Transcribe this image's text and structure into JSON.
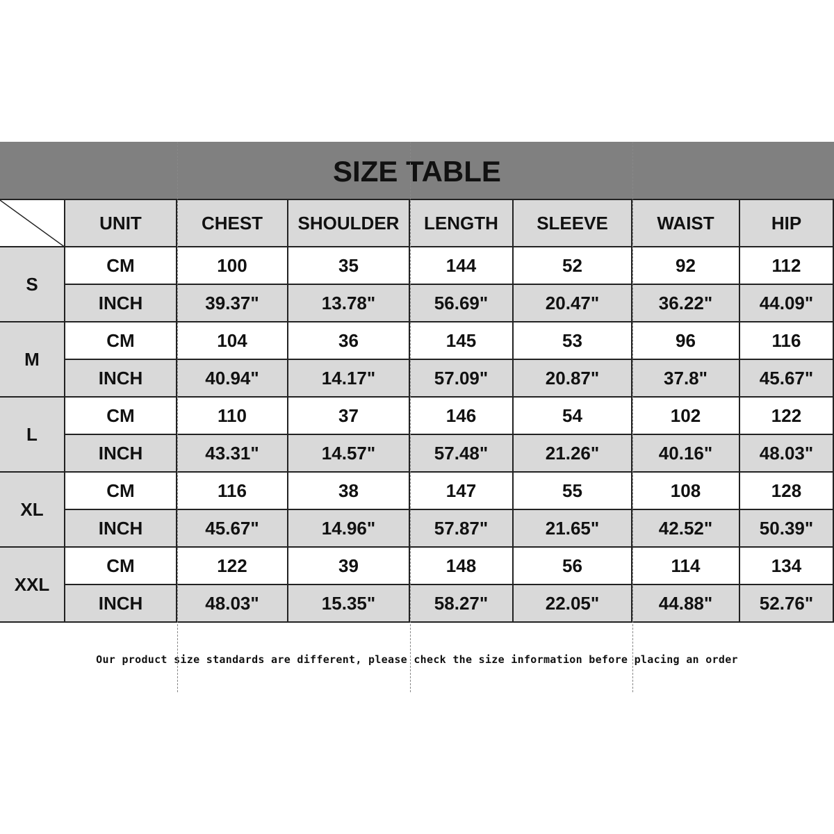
{
  "title": "SIZE TABLE",
  "colors": {
    "header_band": "#808080",
    "cell_gray": "#d9d9d9",
    "cell_white": "#ffffff"
  },
  "columns": [
    "UNIT",
    "CHEST",
    "SHOULDER",
    "LENGTH",
    "SLEEVE",
    "WAIST",
    "HIP"
  ],
  "sizes": [
    {
      "size": "S",
      "rows": [
        {
          "unit": "CM",
          "values": [
            "100",
            "35",
            "144",
            "52",
            "92",
            "112"
          ]
        },
        {
          "unit": "INCH",
          "values": [
            "39.37\"",
            "13.78\"",
            "56.69\"",
            "20.47\"",
            "36.22\"",
            "44.09\""
          ]
        }
      ]
    },
    {
      "size": "M",
      "rows": [
        {
          "unit": "CM",
          "values": [
            "104",
            "36",
            "145",
            "53",
            "96",
            "116"
          ]
        },
        {
          "unit": "INCH",
          "values": [
            "40.94\"",
            "14.17\"",
            "57.09\"",
            "20.87\"",
            "37.8\"",
            "45.67\""
          ]
        }
      ]
    },
    {
      "size": "L",
      "rows": [
        {
          "unit": "CM",
          "values": [
            "110",
            "37",
            "146",
            "54",
            "102",
            "122"
          ]
        },
        {
          "unit": "INCH",
          "values": [
            "43.31\"",
            "14.57\"",
            "57.48\"",
            "21.26\"",
            "40.16\"",
            "48.03\""
          ]
        }
      ]
    },
    {
      "size": "XL",
      "rows": [
        {
          "unit": "CM",
          "values": [
            "116",
            "38",
            "147",
            "55",
            "108",
            "128"
          ]
        },
        {
          "unit": "INCH",
          "values": [
            "45.67\"",
            "14.96\"",
            "57.87\"",
            "21.65\"",
            "42.52\"",
            "50.39\""
          ]
        }
      ]
    },
    {
      "size": "XXL",
      "rows": [
        {
          "unit": "CM",
          "values": [
            "122",
            "39",
            "148",
            "56",
            "114",
            "134"
          ]
        },
        {
          "unit": "INCH",
          "values": [
            "48.03\"",
            "15.35\"",
            "58.27\"",
            "22.05\"",
            "44.88\"",
            "52.76\""
          ]
        }
      ]
    }
  ],
  "note": "Our product size standards are different, please check the size information before placing an order"
}
